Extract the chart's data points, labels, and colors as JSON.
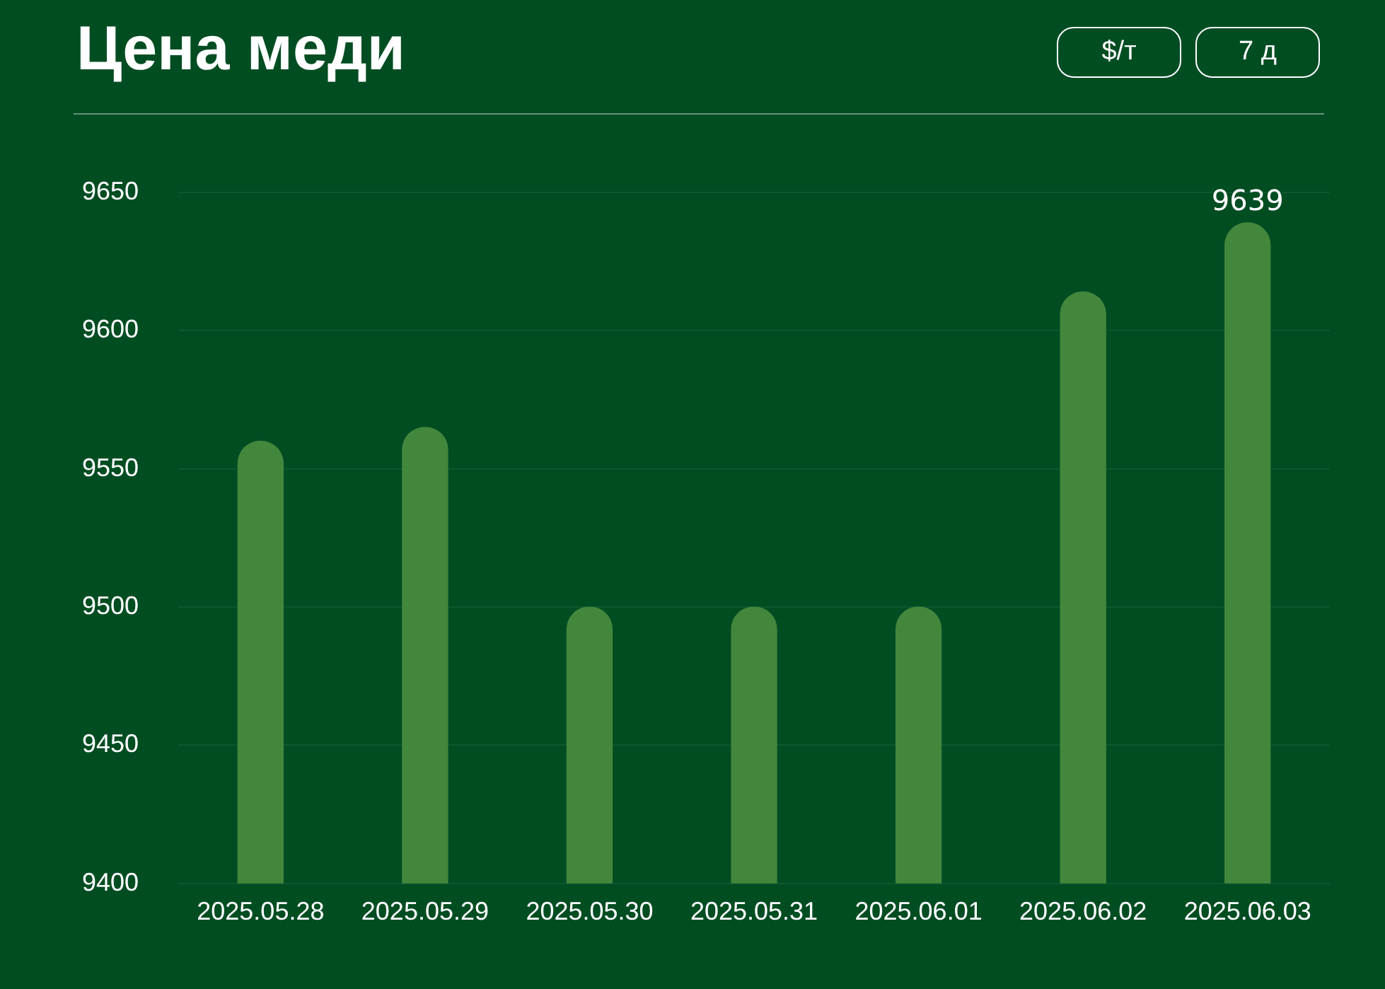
{
  "chart_data": {
    "type": "bar",
    "title": "Цена меди",
    "annotations": [
      "$/т",
      "7 д"
    ],
    "categories": [
      "2025.05.28",
      "2025.05.29",
      "2025.05.30",
      "2025.05.31",
      "2025.06.01",
      "2025.06.02",
      "2025.06.03"
    ],
    "values": [
      9560,
      9565,
      9500,
      9500,
      9500,
      9614,
      9639
    ],
    "value_labels": [
      null,
      null,
      null,
      null,
      null,
      null,
      "9639"
    ],
    "color": "#43873d",
    "ylim": [
      9400,
      9650
    ],
    "yticks": [
      9400,
      9450,
      9500,
      9550,
      9600,
      9650
    ],
    "grid": "y"
  }
}
